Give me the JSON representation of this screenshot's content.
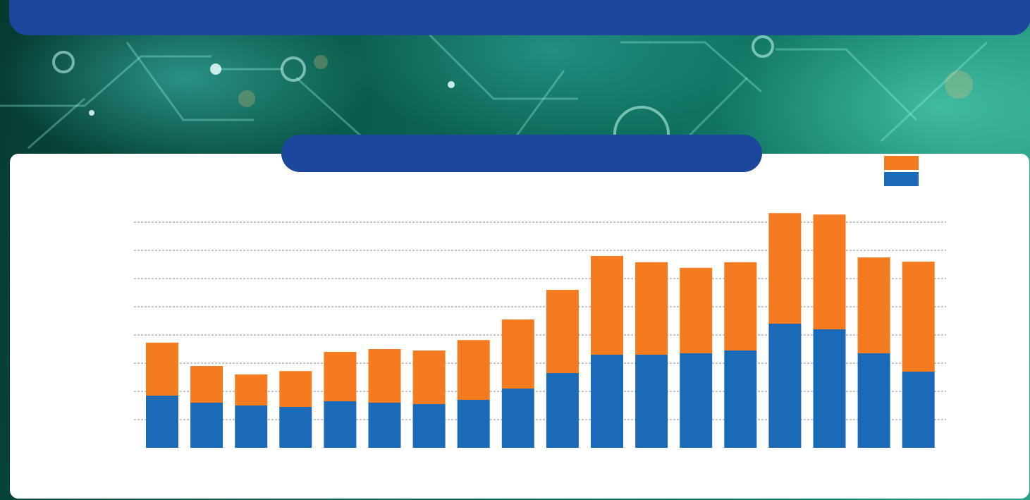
{
  "page": {
    "header_title": ""
  },
  "colors": {
    "header": "#1c479c",
    "card": "#ffffff",
    "grid": "#8a8a8a"
  },
  "chart_data": {
    "type": "bar",
    "stacked": true,
    "title": "",
    "xlabel": "",
    "ylabel": "",
    "categories": [
      "",
      "",
      "",
      "",
      "",
      "",
      "",
      "",
      "",
      "",
      "",
      "",
      "",
      "",
      "",
      "",
      "",
      ""
    ],
    "ylim": [
      0,
      8.3
    ],
    "grid": true,
    "legend_position": "top-right",
    "series": [
      {
        "name": "",
        "color": "#1a6ab8",
        "values": [
          1.85,
          1.6,
          1.5,
          1.45,
          1.65,
          1.6,
          1.55,
          1.7,
          2.1,
          2.65,
          3.3,
          3.3,
          3.35,
          3.45,
          4.4,
          4.2,
          3.35,
          2.7
        ]
      },
      {
        "name": "",
        "color": "#f47b20",
        "values": [
          1.88,
          1.3,
          1.1,
          1.27,
          1.75,
          1.9,
          1.9,
          2.12,
          2.45,
          2.95,
          3.5,
          3.28,
          3.03,
          3.13,
          3.92,
          4.07,
          3.4,
          3.9
        ]
      }
    ]
  }
}
